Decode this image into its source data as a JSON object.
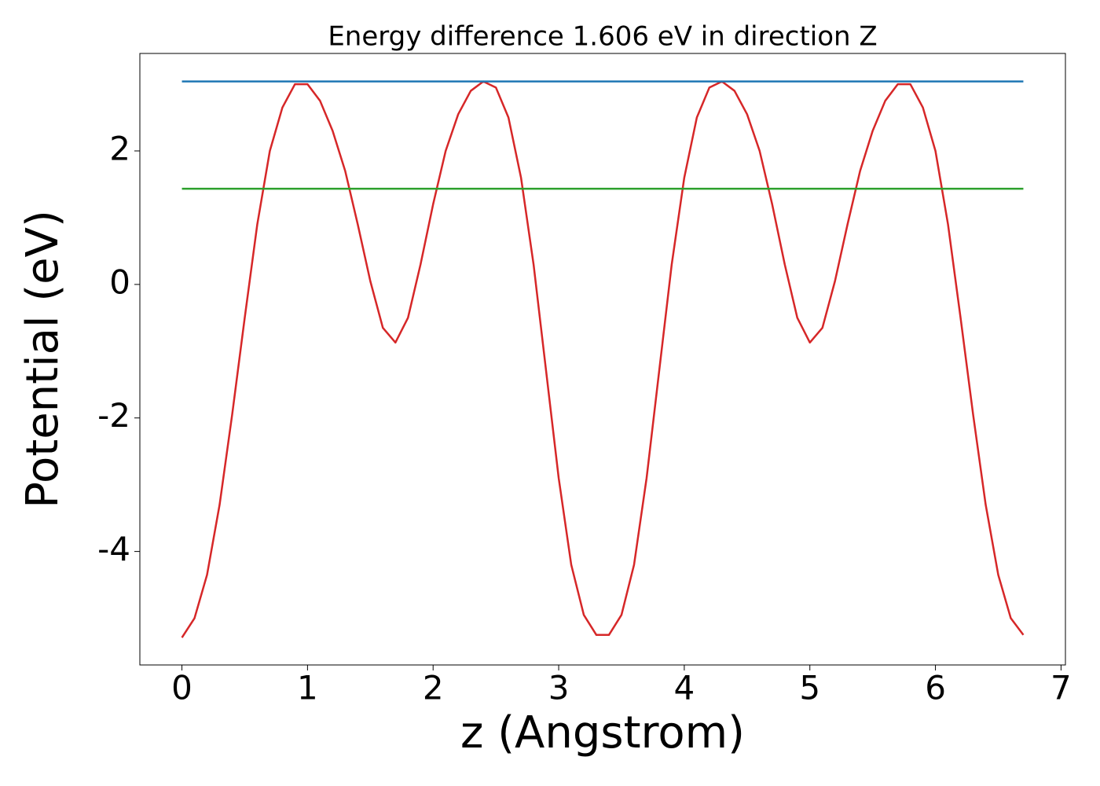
{
  "chart_data": {
    "type": "line",
    "title": "Energy difference 1.606 eV in direction Z",
    "xlabel": "z (Angstrom)",
    "ylabel": "Potential (eV)",
    "xlim": [
      -0.335,
      7.035
    ],
    "ylim": [
      -5.7,
      3.46
    ],
    "xticks": [
      0,
      1,
      2,
      3,
      4,
      5,
      6,
      7
    ],
    "yticks": [
      -4,
      -2,
      0,
      2
    ],
    "grid": false,
    "series": [
      {
        "color": "#d62728",
        "x": [
          0,
          0.1,
          0.2,
          0.3,
          0.4,
          0.5,
          0.6,
          0.7,
          0.8,
          0.9,
          1.0,
          1.1,
          1.2,
          1.3,
          1.4,
          1.5,
          1.6,
          1.7,
          1.8,
          1.9,
          2.0,
          2.1,
          2.2,
          2.3,
          2.4,
          2.5,
          2.6,
          2.7,
          2.8,
          2.9,
          3.0,
          3.1,
          3.2,
          3.3,
          3.4,
          3.5,
          3.6,
          3.7,
          3.8,
          3.9,
          4.0,
          4.1,
          4.2,
          4.3,
          4.4,
          4.5,
          4.6,
          4.7,
          4.8,
          4.9,
          5.0,
          5.1,
          5.2,
          5.3,
          5.4,
          5.5,
          5.6,
          5.7,
          5.8,
          5.9,
          6.0,
          6.1,
          6.2,
          6.3,
          6.4,
          6.5,
          6.6,
          6.7
        ],
        "values": [
          -5.29,
          -5.0,
          -4.35,
          -3.3,
          -1.95,
          -0.5,
          0.9,
          2.0,
          2.65,
          3.0,
          3.0,
          2.75,
          2.3,
          1.7,
          0.9,
          0.05,
          -0.65,
          -0.87,
          -0.5,
          0.3,
          1.2,
          2.0,
          2.55,
          2.9,
          3.04,
          2.95,
          2.5,
          1.6,
          0.3,
          -1.3,
          -2.9,
          -4.2,
          -4.95,
          -5.25,
          -5.25,
          -4.95,
          -4.2,
          -2.9,
          -1.3,
          0.3,
          1.6,
          2.5,
          2.95,
          3.04,
          2.9,
          2.55,
          2.0,
          1.2,
          0.3,
          -0.5,
          -0.87,
          -0.65,
          0.05,
          0.9,
          1.7,
          2.3,
          2.75,
          3.0,
          3.0,
          2.65,
          2.0,
          0.9,
          -0.5,
          -1.95,
          -3.3,
          -4.35,
          -5.0,
          -5.25
        ]
      },
      {
        "color": "#1f77b4",
        "x": [
          0,
          6.7
        ],
        "values": [
          3.04,
          3.04
        ]
      },
      {
        "color": "#2ca02c",
        "x": [
          0,
          6.7
        ],
        "values": [
          1.434,
          1.434
        ]
      }
    ]
  }
}
